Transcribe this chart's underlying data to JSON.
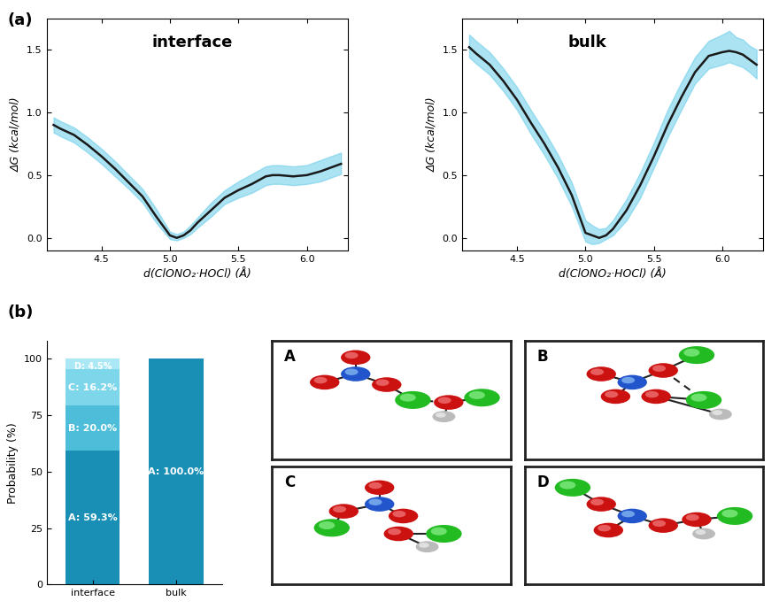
{
  "interface_x": [
    4.15,
    4.2,
    4.3,
    4.4,
    4.5,
    4.6,
    4.7,
    4.8,
    4.9,
    5.0,
    5.05,
    5.1,
    5.15,
    5.2,
    5.3,
    5.4,
    5.5,
    5.6,
    5.65,
    5.7,
    5.75,
    5.8,
    5.9,
    6.0,
    6.1,
    6.2,
    6.25
  ],
  "interface_y": [
    0.9,
    0.87,
    0.82,
    0.74,
    0.65,
    0.55,
    0.44,
    0.33,
    0.17,
    0.02,
    0.0,
    0.02,
    0.06,
    0.12,
    0.22,
    0.32,
    0.38,
    0.43,
    0.46,
    0.49,
    0.5,
    0.5,
    0.49,
    0.5,
    0.53,
    0.57,
    0.59
  ],
  "interface_lo": [
    0.84,
    0.81,
    0.76,
    0.68,
    0.59,
    0.49,
    0.39,
    0.28,
    0.12,
    -0.01,
    -0.02,
    0.0,
    0.03,
    0.08,
    0.17,
    0.27,
    0.32,
    0.36,
    0.39,
    0.42,
    0.43,
    0.43,
    0.42,
    0.43,
    0.45,
    0.49,
    0.51
  ],
  "interface_hi": [
    0.96,
    0.93,
    0.88,
    0.8,
    0.71,
    0.61,
    0.5,
    0.39,
    0.23,
    0.05,
    0.03,
    0.05,
    0.1,
    0.16,
    0.28,
    0.38,
    0.45,
    0.51,
    0.54,
    0.57,
    0.58,
    0.58,
    0.57,
    0.58,
    0.62,
    0.66,
    0.68
  ],
  "bulk_x": [
    4.15,
    4.2,
    4.3,
    4.4,
    4.5,
    4.6,
    4.7,
    4.8,
    4.9,
    5.0,
    5.05,
    5.1,
    5.15,
    5.2,
    5.3,
    5.4,
    5.5,
    5.6,
    5.7,
    5.8,
    5.9,
    6.0,
    6.05,
    6.1,
    6.15,
    6.2,
    6.25
  ],
  "bulk_y": [
    1.52,
    1.47,
    1.38,
    1.25,
    1.1,
    0.92,
    0.75,
    0.56,
    0.34,
    0.04,
    0.02,
    0.0,
    0.02,
    0.07,
    0.22,
    0.42,
    0.65,
    0.9,
    1.12,
    1.32,
    1.45,
    1.48,
    1.49,
    1.48,
    1.46,
    1.42,
    1.38
  ],
  "bulk_lo": [
    1.44,
    1.39,
    1.3,
    1.17,
    1.02,
    0.83,
    0.66,
    0.47,
    0.25,
    -0.03,
    -0.05,
    -0.04,
    -0.01,
    0.02,
    0.14,
    0.32,
    0.56,
    0.8,
    1.02,
    1.23,
    1.35,
    1.38,
    1.4,
    1.38,
    1.36,
    1.32,
    1.27
  ],
  "bulk_hi": [
    1.62,
    1.57,
    1.48,
    1.35,
    1.2,
    1.02,
    0.85,
    0.66,
    0.44,
    0.14,
    0.1,
    0.07,
    0.08,
    0.14,
    0.31,
    0.52,
    0.76,
    1.02,
    1.24,
    1.44,
    1.57,
    1.62,
    1.65,
    1.6,
    1.58,
    1.53,
    1.5
  ],
  "xlim": [
    4.1,
    6.3
  ],
  "ylim_interface": [
    -0.1,
    1.75
  ],
  "ylim_bulk": [
    -0.1,
    1.75
  ],
  "yticks": [
    0.0,
    0.5,
    1.0,
    1.5
  ],
  "xticks": [
    4.5,
    5.0,
    5.5,
    6.0
  ],
  "xlabel": "d(ClONO₂·HOCl) (Å)",
  "ylabel": "ΔG (kcal/mol)",
  "label_interface": "interface",
  "label_bulk": "bulk",
  "line_color": "#1a1a1a",
  "fill_color": "#5bc8e8",
  "fill_alpha": 0.5,
  "bar_categories": [
    "interface",
    "bulk"
  ],
  "bar_A": [
    59.3,
    100.0
  ],
  "bar_B": [
    20.0,
    0.0
  ],
  "bar_C": [
    16.2,
    0.0
  ],
  "bar_D": [
    4.5,
    0.0
  ],
  "color_A": "#1a8fb5",
  "color_B": "#4dbdd9",
  "color_C": "#7ed6ea",
  "color_D": "#aae8f5",
  "bar_labels_interface": [
    "A: 59.3%",
    "B: 20.0%",
    "C: 16.2%",
    "D: 4.5%"
  ],
  "bar_label_bulk": "A: 100.0%",
  "ylabel_bar": "Probability (%)",
  "panel_a_label": "(a)",
  "panel_b_label": "(b)",
  "bg_color": "#ffffff"
}
